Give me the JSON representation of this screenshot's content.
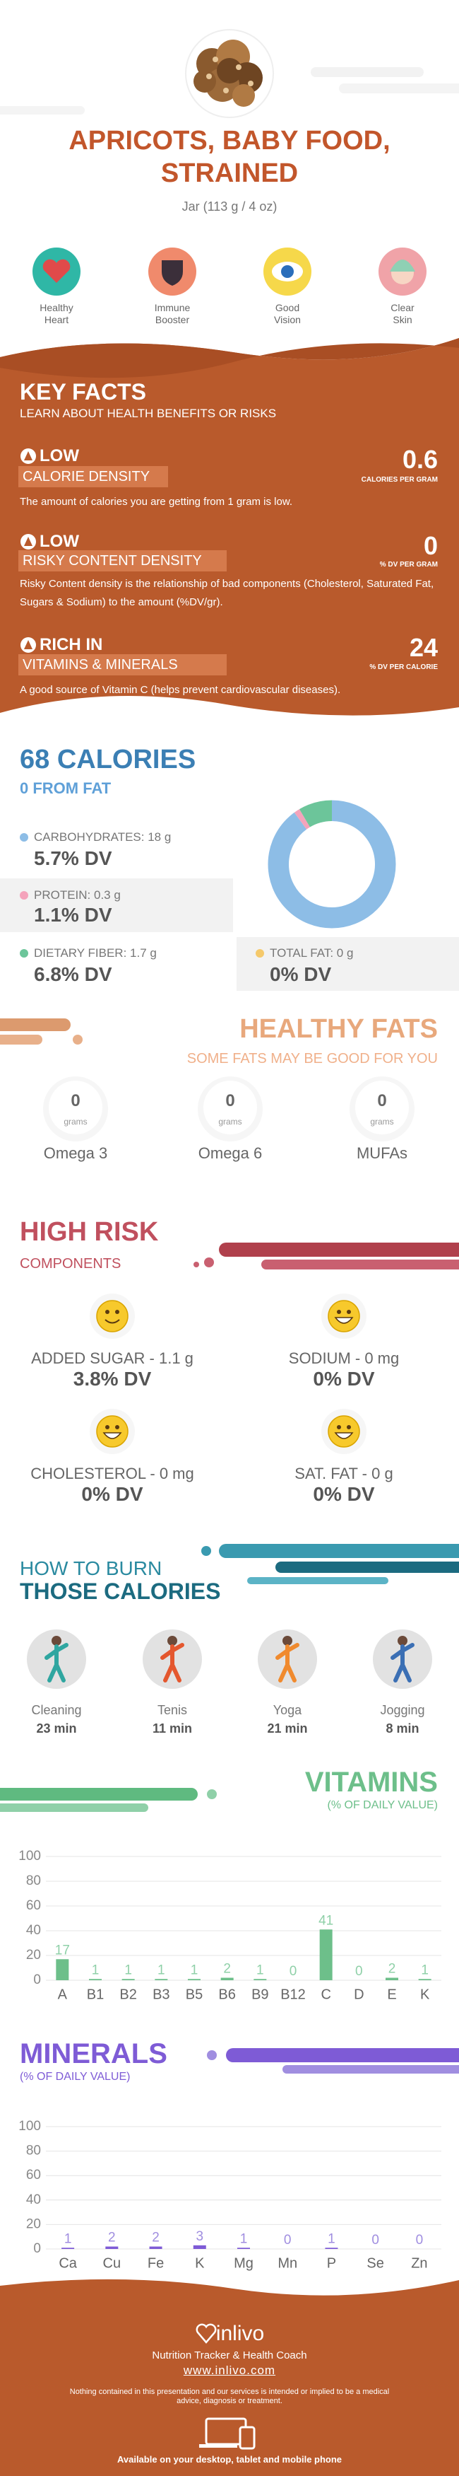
{
  "header": {
    "title": "APRICOTS, BABY FOOD, STRAINED",
    "serving": "Jar (113 g / 4 oz)"
  },
  "benefits": [
    "Healthy Heart",
    "Immune Booster",
    "Good Vision",
    "Clear Skin"
  ],
  "key_facts": {
    "title": "KEY FACTS",
    "subtitle": "LEARN ABOUT HEALTH BENEFITS OR RISKS",
    "facts": [
      {
        "level": "LOW",
        "name": "CALORIE DENSITY",
        "value": 0.6,
        "unit": "CALORIES PER GRAM",
        "description": "The amount of calories you are getting from 1 gram is low."
      },
      {
        "level": "LOW",
        "name": "RISKY CONTENT DENSITY",
        "value": 0,
        "unit": "% DV PER GRAM",
        "description": "Risky Content density is the relationship of bad components (Cholesterol, Saturated Fat, Sugars & Sodium) to the amount (%DV/gr)."
      },
      {
        "level": "RICH IN",
        "name": "VITAMINS & MINERALS",
        "value": 24,
        "unit": "% DV PER CALORIE",
        "description": "A good source of Vitamin C (helps prevent cardiovascular diseases)."
      }
    ]
  },
  "calories": {
    "title": "68 CALORIES",
    "subtitle": "0 FROM FAT"
  },
  "chart_data": [
    {
      "type": "pie",
      "categories": [
        "CARBOHYDRATES: 18 g",
        "PROTEIN: 0.3 g",
        "DIETARY FIBER: 1.7 g",
        "TOTAL FAT: 0 g"
      ],
      "values": [
        18,
        0.3,
        1.7,
        0
      ],
      "dv_labels": [
        "5.7% DV",
        "1.1% DV",
        "6.8% DV",
        "0% DV"
      ],
      "colors": [
        "#8dbde6",
        "#f4a3bb",
        "#6cc59a",
        "#f5c96b"
      ]
    },
    {
      "type": "bar",
      "title": "VITAMINS",
      "subtitle": "(% OF DAILY VALUE)",
      "categories": [
        "A",
        "B1",
        "B2",
        "B3",
        "B5",
        "B6",
        "B9",
        "B12",
        "C",
        "D",
        "E",
        "K"
      ],
      "values": [
        17,
        1,
        1,
        1,
        1,
        2,
        1,
        0,
        41,
        0,
        2,
        1
      ],
      "color": "#6dbf8a",
      "ylim": [
        0,
        100
      ],
      "yticks": [
        0,
        20,
        40,
        60,
        80,
        100
      ],
      "grid": true
    },
    {
      "type": "bar",
      "title": "MINERALS",
      "subtitle": "(% OF DAILY VALUE)",
      "categories": [
        "Ca",
        "Cu",
        "Fe",
        "K",
        "Mg",
        "Mn",
        "P",
        "Se",
        "Zn"
      ],
      "values": [
        1,
        2,
        2,
        3,
        1,
        0,
        1,
        0,
        0
      ],
      "color": "#7e5bd6",
      "ylim": [
        0,
        100
      ],
      "yticks": [
        0,
        20,
        40,
        60,
        80,
        100
      ],
      "grid": true
    }
  ],
  "healthy_fats": {
    "title": "HEALTHY FATS",
    "subtitle": "SOME FATS MAY BE GOOD FOR YOU",
    "items": [
      {
        "value": 0,
        "unit": "grams",
        "name": "Omega 3"
      },
      {
        "value": 0,
        "unit": "grams",
        "name": "Omega 6"
      },
      {
        "value": 0,
        "unit": "grams",
        "name": "MUFAs"
      }
    ]
  },
  "high_risk": {
    "title": "HIGH RISK",
    "subtitle": "COMPONENTS",
    "items": [
      {
        "label": "ADDED SUGAR - 1.1 g",
        "dv": "3.8% DV"
      },
      {
        "label": "SODIUM - 0 mg",
        "dv": "0% DV"
      },
      {
        "label": "CHOLESTEROL - 0 mg",
        "dv": "0% DV"
      },
      {
        "label": "SAT. FAT - 0 g",
        "dv": "0% DV"
      }
    ]
  },
  "burn": {
    "title_line1": "HOW TO BURN",
    "title_line2": "THOSE CALORIES",
    "activities": [
      {
        "name": "Cleaning",
        "time": "23 min"
      },
      {
        "name": "Tenis",
        "time": "11 min"
      },
      {
        "name": "Yoga",
        "time": "21 min"
      },
      {
        "name": "Jogging",
        "time": "8 min"
      }
    ]
  },
  "footer": {
    "brand": "inlivo",
    "tagline": "Nutrition Tracker & Health Coach",
    "url": "www.inlivo.com",
    "disclaimer": "Nothing contained in this presentation and our services is intended or implied to be a medical advice, diagnosis or treatment.",
    "availability": "Available on your desktop, tablet and mobile phone"
  }
}
